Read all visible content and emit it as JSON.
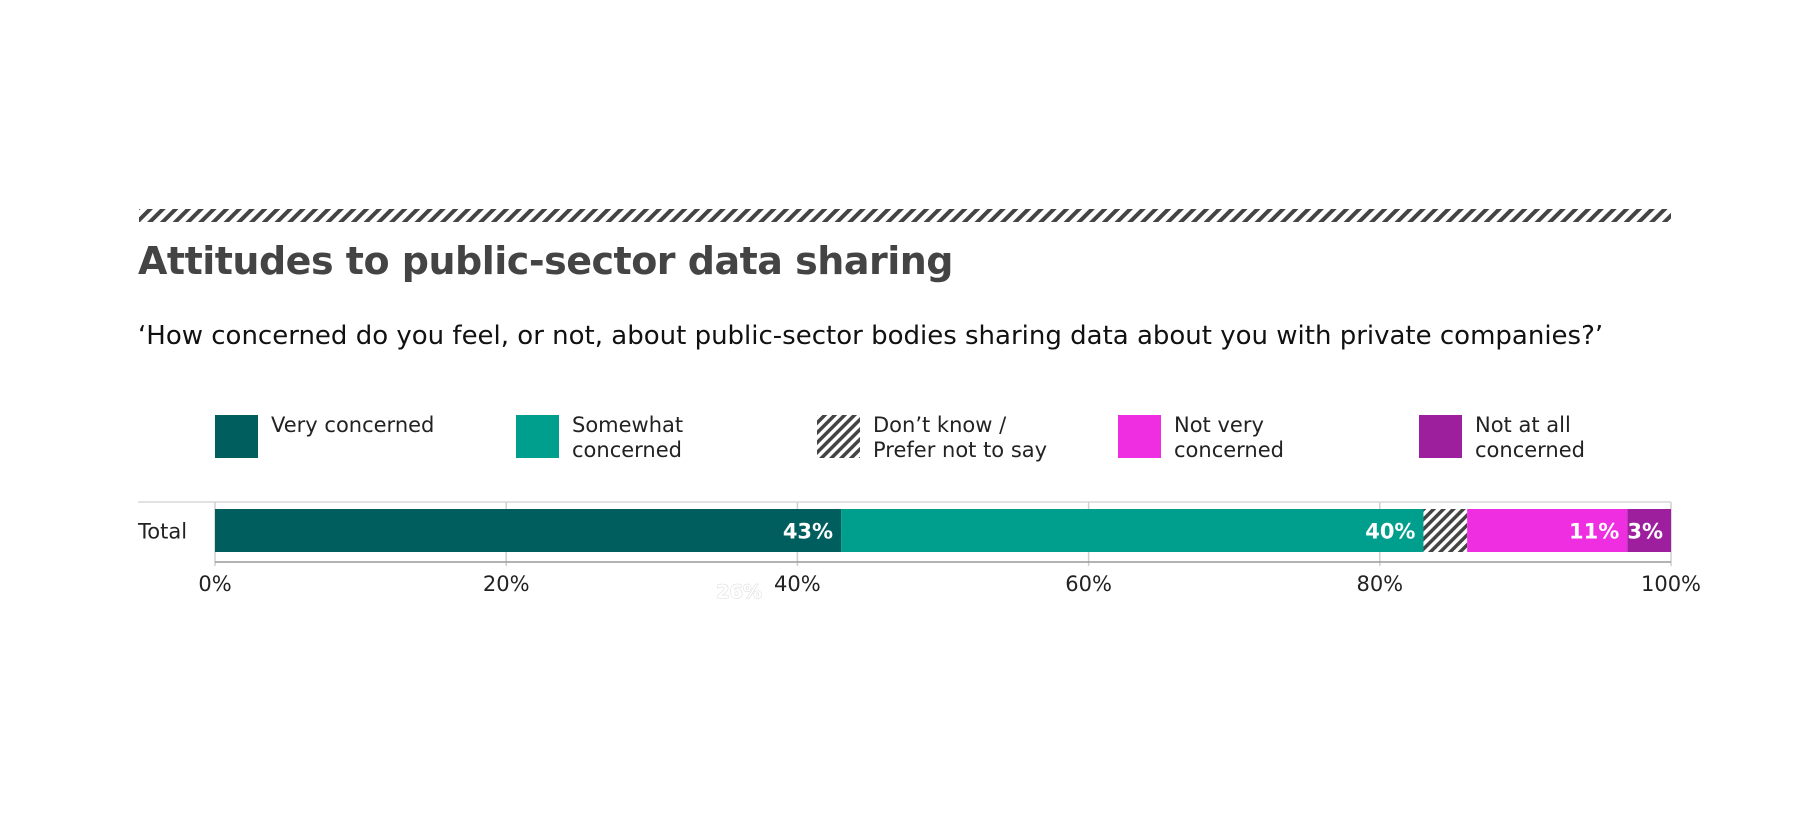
{
  "chart_data": {
    "type": "bar",
    "orientation": "horizontal",
    "stacked": true,
    "title": "Attitudes to public-sector data sharing",
    "subtitle": "‘How concerned do you feel, or not, about public-sector bodies sharing data about you with private companies?’",
    "categories": [
      "Total"
    ],
    "series": [
      {
        "name": "Very concerned",
        "values": [
          43
        ],
        "color": "#005e5e",
        "pattern": false,
        "label": "43%"
      },
      {
        "name": "Somewhat concerned",
        "values": [
          40
        ],
        "color": "#009e8c",
        "pattern": false,
        "label": "40%"
      },
      {
        "name": "Don’t know / Prefer not to say",
        "values": [
          3
        ],
        "color": "#444444",
        "pattern": true,
        "label": ""
      },
      {
        "name": "Not very concerned",
        "values": [
          11
        ],
        "color": "#ee2ee0",
        "pattern": false,
        "label": "11%"
      },
      {
        "name": "Not at all concerned",
        "values": [
          3
        ],
        "color": "#9e1f9e",
        "pattern": false,
        "label": "3%"
      }
    ],
    "legend": {
      "placement": "top",
      "entries": [
        [
          "Very concerned"
        ],
        [
          "Somewhat",
          "concerned"
        ],
        [
          "Don’t know /",
          "Prefer not to say"
        ],
        [
          "Not very",
          "concerned"
        ],
        [
          "Not at all",
          "concerned"
        ]
      ]
    },
    "x_ticks": [
      "0%",
      "20%",
      "40%",
      "60%",
      "80%",
      "100%"
    ],
    "xlim": [
      0,
      100
    ],
    "grid": true,
    "ghost_label": "26%"
  }
}
